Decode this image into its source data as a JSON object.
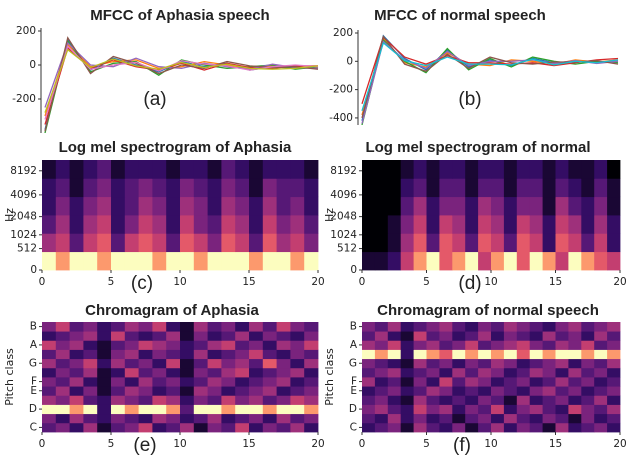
{
  "chart_data": [
    {
      "type": "line",
      "title": "MFCC of Aphasia speech",
      "panel_label": "(a)",
      "ylim": [
        -400,
        200
      ],
      "yticks": [
        200,
        0,
        -200
      ],
      "series": [
        {
          "color": "#1f77b4",
          "values": [
            -380,
            150,
            -30,
            40,
            0,
            -40,
            20,
            -10,
            10,
            -30,
            -10,
            -20,
            -15
          ]
        },
        {
          "color": "#ff7f0e",
          "values": [
            -300,
            120,
            -10,
            20,
            30,
            -20,
            -10,
            20,
            0,
            -20,
            -5,
            -10,
            -20
          ]
        },
        {
          "color": "#2ca02c",
          "values": [
            -400,
            140,
            -40,
            10,
            20,
            -60,
            30,
            0,
            -20,
            -10,
            0,
            -25,
            -10
          ]
        },
        {
          "color": "#d62728",
          "values": [
            -350,
            100,
            -20,
            30,
            -10,
            -30,
            10,
            -30,
            10,
            -15,
            -20,
            -5,
            -5
          ]
        },
        {
          "color": "#9467bd",
          "values": [
            -250,
            130,
            0,
            -10,
            40,
            -10,
            -20,
            10,
            -10,
            -25,
            5,
            -15,
            -20
          ]
        },
        {
          "color": "#8c564b",
          "values": [
            -390,
            160,
            -50,
            50,
            10,
            -50,
            0,
            -20,
            20,
            -5,
            -15,
            -10,
            -25
          ]
        },
        {
          "color": "#e377c2",
          "values": [
            -320,
            110,
            -25,
            0,
            15,
            -35,
            25,
            5,
            -5,
            -30,
            -10,
            0,
            -10
          ]
        },
        {
          "color": "#bcbd22",
          "values": [
            -280,
            90,
            -15,
            35,
            -5,
            -25,
            15,
            -15,
            5,
            -20,
            -25,
            -20,
            -5
          ]
        }
      ]
    },
    {
      "type": "line",
      "title": "MFCC of normal speech",
      "panel_label": "(b)",
      "ylim": [
        -450,
        200
      ],
      "yticks": [
        200,
        0,
        -200,
        -400
      ],
      "series": [
        {
          "color": "#1f77b4",
          "values": [
            -420,
            180,
            20,
            -60,
            80,
            -40,
            10,
            -30,
            20,
            -10,
            0,
            -10,
            0
          ]
        },
        {
          "color": "#ff7f0e",
          "values": [
            -380,
            160,
            -10,
            -40,
            60,
            -20,
            -30,
            10,
            0,
            -20,
            10,
            -5,
            10
          ]
        },
        {
          "color": "#2ca02c",
          "values": [
            -450,
            150,
            0,
            -80,
            90,
            -60,
            20,
            -40,
            30,
            0,
            -20,
            0,
            -10
          ]
        },
        {
          "color": "#d62728",
          "values": [
            -300,
            170,
            30,
            -20,
            40,
            -10,
            -10,
            -20,
            -10,
            -30,
            -10,
            10,
            20
          ]
        },
        {
          "color": "#9467bd",
          "values": [
            -440,
            140,
            10,
            -50,
            70,
            -30,
            0,
            0,
            10,
            -15,
            5,
            -15,
            0
          ]
        },
        {
          "color": "#8c564b",
          "values": [
            -400,
            175,
            -20,
            -70,
            50,
            -50,
            30,
            -10,
            -20,
            -5,
            -5,
            5,
            -20
          ]
        },
        {
          "color": "#17becf",
          "values": [
            -350,
            130,
            5,
            -30,
            30,
            -20,
            -20,
            -25,
            15,
            -25,
            0,
            -10,
            10
          ]
        }
      ]
    },
    {
      "type": "heatmap",
      "title": "Log mel spectrogram of Aphasia",
      "panel_label": "(c)",
      "ylabel": "Hz",
      "yscale": "mel",
      "ylim": [
        0,
        11025
      ],
      "yticks": [
        0,
        512,
        1024,
        2048,
        4096,
        8192
      ],
      "xlim": [
        0,
        20
      ],
      "xticks": [
        0,
        5,
        10,
        15,
        20
      ],
      "zlim": [
        0,
        9
      ],
      "colormap": "magma",
      "values": [
        [
          9,
          8,
          9,
          9,
          8,
          9,
          9,
          9,
          8,
          9,
          9,
          8,
          9,
          9,
          9,
          8,
          9,
          9,
          8,
          9
        ],
        [
          5,
          6,
          3,
          6,
          7,
          3,
          6,
          7,
          6,
          3,
          7,
          6,
          4,
          7,
          6,
          3,
          7,
          5,
          6,
          4
        ],
        [
          3,
          5,
          2,
          5,
          6,
          2,
          4,
          6,
          5,
          2,
          6,
          4,
          3,
          6,
          5,
          2,
          6,
          4,
          5,
          3
        ],
        [
          2,
          4,
          2,
          4,
          5,
          2,
          3,
          5,
          4,
          2,
          5,
          4,
          2,
          5,
          4,
          2,
          5,
          3,
          4,
          2
        ],
        [
          2,
          3,
          1,
          3,
          4,
          2,
          3,
          4,
          3,
          2,
          4,
          3,
          2,
          4,
          3,
          1,
          4,
          3,
          3,
          2
        ],
        [
          1,
          2,
          1,
          2,
          3,
          1,
          2,
          2,
          2,
          1,
          2,
          2,
          1,
          3,
          2,
          1,
          2,
          2,
          2,
          1
        ]
      ]
    },
    {
      "type": "heatmap",
      "title": "Log mel spectrogram of normal",
      "panel_label": "(d)",
      "ylabel": "Hz",
      "yscale": "mel",
      "ylim": [
        0,
        11025
      ],
      "yticks": [
        0,
        512,
        1024,
        2048,
        4096,
        8192
      ],
      "xlim": [
        0,
        20
      ],
      "xticks": [
        0,
        5,
        10,
        15,
        20
      ],
      "zlim": [
        0,
        9
      ],
      "colormap": "magma",
      "values": [
        [
          1,
          1,
          2,
          6,
          8,
          9,
          7,
          8,
          9,
          6,
          8,
          9,
          7,
          9,
          8,
          6,
          9,
          8,
          7,
          6
        ],
        [
          0,
          0,
          1,
          5,
          7,
          3,
          7,
          6,
          3,
          7,
          6,
          3,
          7,
          6,
          2,
          7,
          6,
          3,
          6,
          2
        ],
        [
          0,
          0,
          1,
          4,
          6,
          2,
          6,
          5,
          2,
          6,
          5,
          2,
          6,
          5,
          2,
          6,
          5,
          2,
          5,
          2
        ],
        [
          0,
          0,
          0,
          3,
          5,
          2,
          4,
          4,
          2,
          5,
          4,
          2,
          4,
          4,
          1,
          5,
          3,
          2,
          4,
          1
        ],
        [
          0,
          0,
          0,
          2,
          3,
          1,
          3,
          3,
          1,
          3,
          3,
          1,
          3,
          3,
          1,
          3,
          2,
          1,
          3,
          1
        ],
        [
          0,
          0,
          0,
          1,
          2,
          1,
          2,
          2,
          1,
          2,
          2,
          1,
          2,
          2,
          1,
          2,
          1,
          1,
          2,
          0
        ]
      ]
    },
    {
      "type": "heatmap",
      "title": "Chromagram of Aphasia",
      "panel_label": "(e)",
      "ylabel": "Pitch class",
      "ylim": [
        -0.5,
        11.5
      ],
      "yticks": [
        {
          "value": 0,
          "label": "C"
        },
        {
          "value": 2,
          "label": "D"
        },
        {
          "value": 4,
          "label": "E"
        },
        {
          "value": 5,
          "label": "F"
        },
        {
          "value": 7,
          "label": "G"
        },
        {
          "value": 9,
          "label": "A"
        },
        {
          "value": 11,
          "label": "B"
        }
      ],
      "xlim": [
        0,
        20
      ],
      "xticks": [
        0,
        5,
        10,
        15,
        20
      ],
      "zlim": [
        0,
        9
      ],
      "colormap": "magma",
      "values": [
        [
          3,
          4,
          2,
          5,
          1,
          3,
          4,
          6,
          2,
          3,
          5,
          1,
          4,
          3,
          6,
          2,
          4,
          3,
          5,
          2
        ],
        [
          4,
          2,
          5,
          3,
          2,
          4,
          3,
          2,
          5,
          4,
          2,
          3,
          5,
          2,
          3,
          4,
          2,
          5,
          3,
          4
        ],
        [
          9,
          9,
          8,
          9,
          2,
          9,
          8,
          9,
          9,
          8,
          3,
          9,
          9,
          8,
          9,
          9,
          8,
          9,
          9,
          8
        ],
        [
          5,
          4,
          6,
          3,
          2,
          5,
          4,
          3,
          6,
          5,
          2,
          4,
          3,
          6,
          4,
          5,
          3,
          4,
          6,
          5
        ],
        [
          3,
          5,
          2,
          4,
          1,
          3,
          5,
          4,
          2,
          3,
          1,
          5,
          4,
          2,
          3,
          4,
          5,
          2,
          3,
          4
        ],
        [
          4,
          3,
          5,
          2,
          1,
          4,
          2,
          5,
          3,
          4,
          2,
          3,
          5,
          4,
          2,
          3,
          4,
          5,
          2,
          3
        ],
        [
          2,
          4,
          3,
          5,
          1,
          2,
          6,
          3,
          4,
          2,
          1,
          4,
          3,
          5,
          6,
          2,
          3,
          4,
          5,
          2
        ],
        [
          5,
          3,
          4,
          6,
          2,
          5,
          3,
          4,
          2,
          6,
          1,
          3,
          6,
          4,
          5,
          3,
          7,
          4,
          2,
          5
        ],
        [
          3,
          5,
          2,
          3,
          1,
          4,
          5,
          2,
          4,
          3,
          2,
          5,
          2,
          3,
          4,
          6,
          3,
          2,
          4,
          3
        ],
        [
          6,
          4,
          5,
          2,
          1,
          3,
          4,
          6,
          5,
          4,
          2,
          3,
          5,
          6,
          3,
          4,
          2,
          5,
          4,
          6
        ],
        [
          2,
          3,
          4,
          5,
          2,
          6,
          3,
          2,
          3,
          5,
          1,
          4,
          2,
          3,
          5,
          2,
          4,
          3,
          2,
          4
        ],
        [
          4,
          6,
          3,
          4,
          2,
          3,
          5,
          4,
          6,
          2,
          1,
          5,
          3,
          4,
          2,
          5,
          3,
          6,
          4,
          3
        ]
      ]
    },
    {
      "type": "heatmap",
      "title": "Chromagram of normal speech",
      "panel_label": "(f)",
      "ylabel": "Pitch class",
      "ylim": [
        -0.5,
        11.5
      ],
      "yticks": [
        {
          "value": 0,
          "label": "C"
        },
        {
          "value": 2,
          "label": "D"
        },
        {
          "value": 4,
          "label": "E"
        },
        {
          "value": 5,
          "label": "F"
        },
        {
          "value": 7,
          "label": "G"
        },
        {
          "value": 9,
          "label": "A"
        },
        {
          "value": 11,
          "label": "B"
        }
      ],
      "xlim": [
        0,
        20
      ],
      "xticks": [
        0,
        5,
        10,
        15,
        20
      ],
      "zlim": [
        0,
        9
      ],
      "colormap": "magma",
      "values": [
        [
          2,
          3,
          4,
          1,
          5,
          3,
          2,
          4,
          1,
          3,
          5,
          2,
          4,
          3,
          1,
          5,
          2,
          3,
          4,
          2
        ],
        [
          3,
          2,
          5,
          2,
          4,
          2,
          3,
          1,
          3,
          4,
          2,
          5,
          3,
          2,
          4,
          3,
          1,
          4,
          2,
          3
        ],
        [
          4,
          5,
          3,
          2,
          6,
          4,
          5,
          2,
          4,
          3,
          6,
          2,
          4,
          5,
          3,
          2,
          6,
          4,
          3,
          5
        ],
        [
          3,
          4,
          2,
          1,
          5,
          3,
          2,
          3,
          2,
          4,
          3,
          1,
          5,
          2,
          3,
          4,
          2,
          3,
          5,
          2
        ],
        [
          2,
          3,
          4,
          2,
          3,
          5,
          4,
          2,
          3,
          2,
          4,
          3,
          2,
          4,
          5,
          3,
          4,
          2,
          3,
          4
        ],
        [
          5,
          2,
          3,
          1,
          4,
          2,
          6,
          3,
          5,
          4,
          2,
          3,
          4,
          2,
          3,
          5,
          3,
          4,
          2,
          3
        ],
        [
          3,
          4,
          5,
          2,
          3,
          4,
          2,
          5,
          3,
          5,
          4,
          2,
          3,
          5,
          4,
          2,
          5,
          3,
          4,
          2
        ],
        [
          4,
          3,
          2,
          1,
          5,
          3,
          4,
          2,
          4,
          3,
          5,
          4,
          2,
          3,
          4,
          5,
          2,
          4,
          3,
          5
        ],
        [
          9,
          8,
          9,
          2,
          9,
          8,
          7,
          9,
          8,
          9,
          8,
          9,
          7,
          9,
          8,
          9,
          9,
          8,
          9,
          8
        ],
        [
          5,
          4,
          6,
          2,
          4,
          5,
          3,
          4,
          6,
          3,
          4,
          5,
          6,
          4,
          3,
          5,
          4,
          6,
          3,
          4
        ],
        [
          3,
          5,
          2,
          1,
          6,
          3,
          4,
          2,
          3,
          5,
          2,
          4,
          3,
          2,
          5,
          3,
          4,
          2,
          5,
          3
        ],
        [
          4,
          3,
          5,
          2,
          3,
          4,
          5,
          3,
          2,
          4,
          3,
          5,
          4,
          3,
          2,
          4,
          5,
          3,
          4,
          5
        ]
      ]
    }
  ]
}
